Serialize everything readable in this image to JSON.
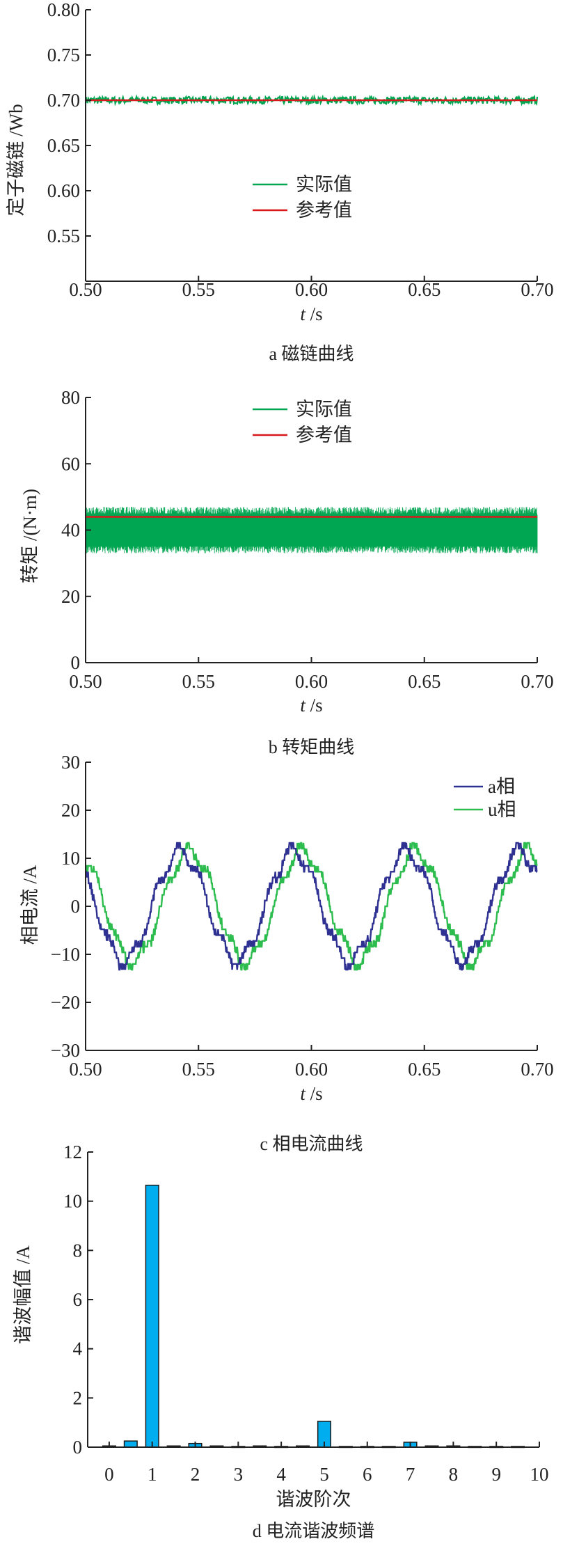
{
  "chart_data": [
    {
      "type": "line",
      "caption": "a 磁链曲线",
      "xlabel_italic": "t",
      "xlabel": " /s",
      "ylabel": "定子磁链 /Wb",
      "xlim": [
        0.5,
        0.7
      ],
      "ylim": [
        0.5,
        0.8
      ],
      "xticks": [
        "0.50",
        "0.55",
        "0.60",
        "0.65",
        "0.70"
      ],
      "yticks": [
        "0.55",
        "0.60",
        "0.65",
        "0.70",
        "0.75",
        "0.80"
      ],
      "legend_position": "center",
      "series": [
        {
          "name": "实际值",
          "color": "#00a651",
          "mean": 0.7,
          "ripple": 0.004
        },
        {
          "name": "参考值",
          "color": "#d7191c",
          "value": 0.7
        }
      ]
    },
    {
      "type": "line",
      "caption": "b 转矩曲线",
      "xlabel_italic": "t",
      "xlabel": " /s",
      "ylabel": "转矩 /(N·m)",
      "xlim": [
        0.5,
        0.7
      ],
      "ylim": [
        0,
        80
      ],
      "xticks": [
        "0.50",
        "0.55",
        "0.60",
        "0.65",
        "0.70"
      ],
      "yticks": [
        "0",
        "20",
        "40",
        "60",
        "80"
      ],
      "legend_position": "top-center",
      "series": [
        {
          "name": "实际值",
          "color": "#00a651",
          "band": [
            33,
            47
          ]
        },
        {
          "name": "参考值",
          "color": "#d7191c",
          "value": 44
        }
      ]
    },
    {
      "type": "line",
      "caption": "c 相电流曲线",
      "xlabel_italic": "t",
      "xlabel": " /s",
      "ylabel": "相电流 /A",
      "xlim": [
        0.5,
        0.7
      ],
      "ylim": [
        -30,
        30
      ],
      "xticks": [
        "0.50",
        "0.55",
        "0.60",
        "0.65",
        "0.70"
      ],
      "yticks": [
        "−30",
        "−20",
        "−10",
        "0",
        "10",
        "20",
        "30"
      ],
      "legend_position": "top-right",
      "series": [
        {
          "name": "a相",
          "color": "#2e3192",
          "amplitude": 12,
          "freq_hz": 20,
          "peak_time": 0.542
        },
        {
          "name": "u相",
          "color": "#2dbd4e",
          "amplitude": 12,
          "freq_hz": 20,
          "peak_time": 0.546
        }
      ]
    },
    {
      "type": "bar",
      "caption": "d 电流谐波频谱",
      "xlabel": "谐波阶次",
      "ylabel": "谐波幅值 /A",
      "xlim": [
        -0.5,
        10
      ],
      "ylim": [
        0,
        12
      ],
      "xticks": [
        "0",
        "1",
        "2",
        "3",
        "4",
        "5",
        "6",
        "7",
        "8",
        "9",
        "10"
      ],
      "yticks": [
        "0",
        "2",
        "4",
        "6",
        "8",
        "10",
        "12"
      ],
      "color": "#00aeef",
      "x": [
        0,
        0.5,
        1,
        1.5,
        2,
        2.5,
        3,
        3.5,
        4,
        4.5,
        5,
        5.5,
        6,
        6.5,
        7,
        7.5,
        8,
        8.5,
        9,
        9.5
      ],
      "values": [
        0.05,
        0.25,
        10.65,
        0.05,
        0.15,
        0.05,
        0.03,
        0.05,
        0.03,
        0.05,
        1.05,
        0.03,
        0.03,
        0.03,
        0.2,
        0.05,
        0.05,
        0.03,
        0.03,
        0.03
      ]
    }
  ]
}
